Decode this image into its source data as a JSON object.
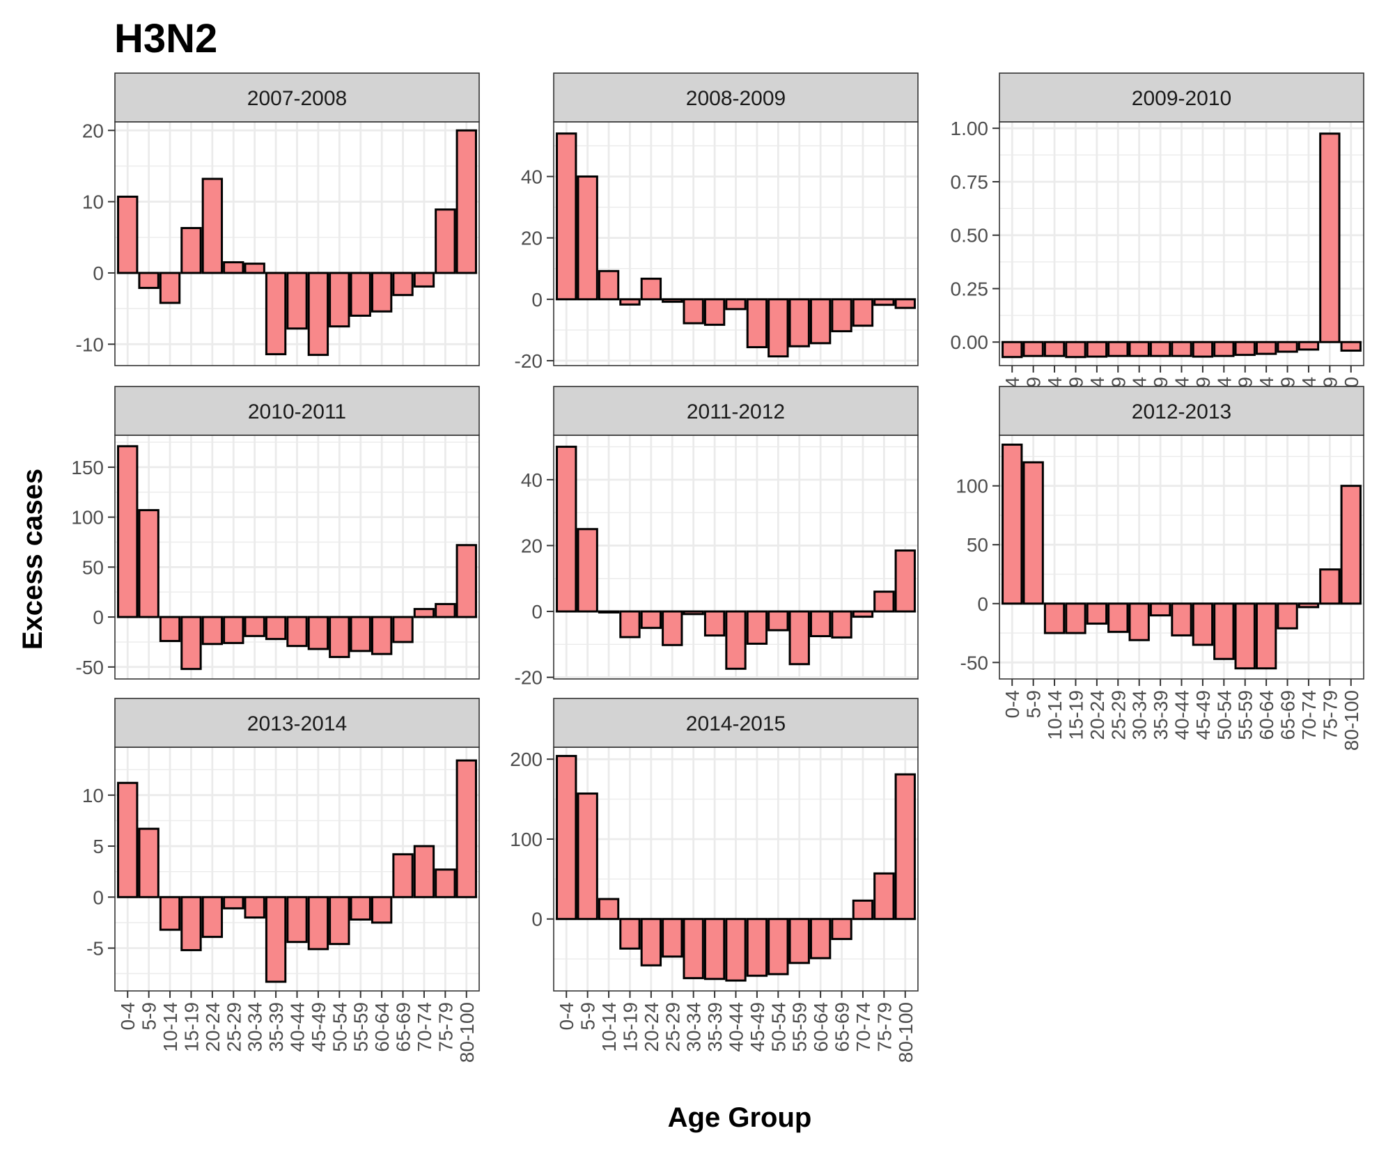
{
  "title": "H3N2",
  "xlabel": "Age Group",
  "ylabel": "Excess cases",
  "colors": {
    "bar_fill": "#F8888A",
    "bar_stroke": "#000000",
    "strip_fill": "#D3D3D3",
    "grid": "#EBEBEB",
    "panel_border": "#333333",
    "tick_text": "#4D4D4D"
  },
  "chart_data": {
    "type": "bar",
    "layout": "facet-grid-3-columns",
    "grid": true,
    "categories": [
      "0-4",
      "5-9",
      "10-14",
      "15-19",
      "20-24",
      "25-29",
      "30-34",
      "35-39",
      "40-44",
      "45-49",
      "50-54",
      "55-59",
      "60-64",
      "65-69",
      "70-74",
      "75-79",
      "80-100"
    ],
    "panels": [
      {
        "name": "2007-2008",
        "values": [
          10.7,
          -2.1,
          -4.2,
          6.3,
          13.2,
          1.5,
          1.3,
          -11.4,
          -7.8,
          -11.5,
          -7.5,
          -6.0,
          -5.4,
          -3.1,
          -1.9,
          8.9,
          20.0
        ],
        "ylim": [
          -13,
          21.2
        ],
        "yticks": [
          -10,
          0,
          10,
          20
        ],
        "ytick_labels": [
          "-10",
          "0",
          "10",
          "20"
        ],
        "show_x_labels": false
      },
      {
        "name": "2008-2009",
        "values": [
          54,
          40,
          9.2,
          -1.7,
          6.7,
          -0.8,
          -7.8,
          -8.3,
          -3.2,
          -15.6,
          -18.6,
          -15.3,
          -14.3,
          -10.4,
          -8.6,
          -1.8,
          -2.8
        ],
        "ylim": [
          -21.6,
          57.8
        ],
        "yticks": [
          -20,
          0,
          20,
          40
        ],
        "ytick_labels": [
          "-20",
          "0",
          "20",
          "40"
        ],
        "show_x_labels": false
      },
      {
        "name": "2009-2010",
        "values": [
          -0.07,
          -0.065,
          -0.065,
          -0.07,
          -0.068,
          -0.065,
          -0.065,
          -0.065,
          -0.065,
          -0.068,
          -0.065,
          -0.06,
          -0.055,
          -0.045,
          -0.035,
          0.975,
          -0.04
        ],
        "ylim": [
          -0.11,
          1.03
        ],
        "yticks": [
          0,
          0.25,
          0.5,
          0.75,
          1
        ],
        "ytick_labels": [
          "0.00",
          "0.25",
          "0.50",
          "0.75",
          "1.00"
        ],
        "show_x_labels": true
      },
      {
        "name": "2010-2011",
        "values": [
          171,
          107,
          -24,
          -52,
          -27,
          -26,
          -19,
          -22,
          -29,
          -32,
          -40,
          -34,
          -37,
          -25,
          8,
          13,
          72
        ],
        "ylim": [
          -62,
          182
        ],
        "yticks": [
          -50,
          0,
          50,
          100,
          150
        ],
        "ytick_labels": [
          "-50",
          "0",
          "50",
          "100",
          "150"
        ],
        "show_x_labels": false
      },
      {
        "name": "2011-2012",
        "values": [
          50,
          25,
          -0.3,
          -7.8,
          -5.0,
          -10.2,
          -0.8,
          -7.3,
          -17.4,
          -9.8,
          -5.7,
          -16.0,
          -7.5,
          -7.9,
          -1.6,
          6.0,
          18.5
        ],
        "ylim": [
          -20.5,
          53.5
        ],
        "yticks": [
          -20,
          0,
          20,
          40
        ],
        "ytick_labels": [
          "-20",
          "0",
          "20",
          "40"
        ],
        "show_x_labels": false
      },
      {
        "name": "2012-2013",
        "values": [
          135,
          120,
          -25,
          -25,
          -17,
          -24,
          -31,
          -10,
          -27,
          -35,
          -47,
          -55,
          -55,
          -21,
          -3,
          29,
          100
        ],
        "ylim": [
          -64,
          143
        ],
        "yticks": [
          -50,
          0,
          50,
          100
        ],
        "ytick_labels": [
          "-50",
          "0",
          "50",
          "100"
        ],
        "show_x_labels": true
      },
      {
        "name": "2013-2014",
        "values": [
          11.2,
          6.7,
          -3.2,
          -5.2,
          -3.9,
          -1.1,
          -2.0,
          -8.3,
          -4.4,
          -5.1,
          -4.6,
          -2.2,
          -2.5,
          4.2,
          5.0,
          2.7,
          13.4
        ],
        "ylim": [
          -9.2,
          14.7
        ],
        "yticks": [
          -5,
          0,
          5,
          10
        ],
        "ytick_labels": [
          "-5",
          "0",
          "5",
          "10"
        ],
        "show_x_labels": true
      },
      {
        "name": "2014-2015",
        "values": [
          204,
          157,
          25,
          -37,
          -58,
          -47,
          -74,
          -75,
          -77,
          -71,
          -69,
          -55,
          -49,
          -25,
          23,
          57,
          181
        ],
        "ylim": [
          -90,
          215
        ],
        "yticks": [
          0,
          100,
          200
        ],
        "ytick_labels": [
          "0",
          "100",
          "200"
        ],
        "show_x_labels": true
      }
    ]
  }
}
